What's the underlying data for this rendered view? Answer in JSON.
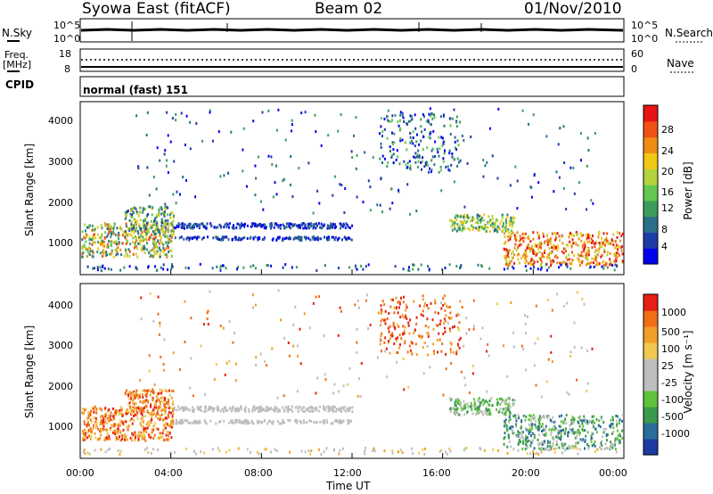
{
  "header": {
    "station": "Syowa East (fitACF)",
    "beam": "Beam 02",
    "date": "01/Nov/2010"
  },
  "noise_panel": {
    "left_label": "N.Sky",
    "right_label": "N.Search",
    "y_ticks_left": [
      "10^5",
      "10^0"
    ],
    "y_ticks_right": [
      "10^5",
      "10^0"
    ]
  },
  "freq_panel": {
    "left_label_line1": "Freq.",
    "left_label_line2": "[MHz]",
    "right_label": "Nave",
    "y_ticks_left": [
      "18",
      "8"
    ],
    "y_ticks_right": [
      "60",
      "0"
    ]
  },
  "cpid_panel": {
    "label": "CPID",
    "value": "normal (fast) 151"
  },
  "chart_data": [
    {
      "type": "heatmap",
      "quantity": "Power",
      "ylabel": "Slant Range [km]",
      "ylim": [
        180,
        4500
      ],
      "y_ticks": [
        "1000",
        "2000",
        "3000",
        "4000"
      ],
      "x_ticks": [],
      "colorbar_label": "Power [dB]",
      "colorbar_ticks": [
        "28",
        "24",
        "20",
        "16",
        "12",
        "8",
        "4"
      ],
      "colorscale": [
        "#0000f0",
        "#1e3ca8",
        "#2a6e8a",
        "#3c9c5c",
        "#64c850",
        "#b4d23c",
        "#f0c814",
        "#f08c14",
        "#f05014",
        "#e61414"
      ]
    },
    {
      "type": "heatmap",
      "quantity": "Velocity",
      "ylabel": "Slant Range [km]",
      "ylim": [
        180,
        4500
      ],
      "y_ticks": [
        "1000",
        "2000",
        "3000",
        "4000"
      ],
      "x_ticks": [
        "00:00",
        "04:00",
        "08:00",
        "12:00",
        "16:00",
        "20:00",
        "00:00"
      ],
      "xlabel": "Time UT",
      "colorbar_label": "Velocity [m s⁻¹]",
      "colorbar_ticks": [
        "1000",
        "500",
        "100",
        "25",
        "-25",
        "-100",
        "-500",
        "-1000"
      ],
      "colorscale": [
        "#1e3ca0",
        "#2a6c9a",
        "#3c9a4c",
        "#5fc43c",
        "#bebebe",
        "#bebebe",
        "#f0c850",
        "#f0a028",
        "#f06e14",
        "#e61e14"
      ]
    }
  ]
}
